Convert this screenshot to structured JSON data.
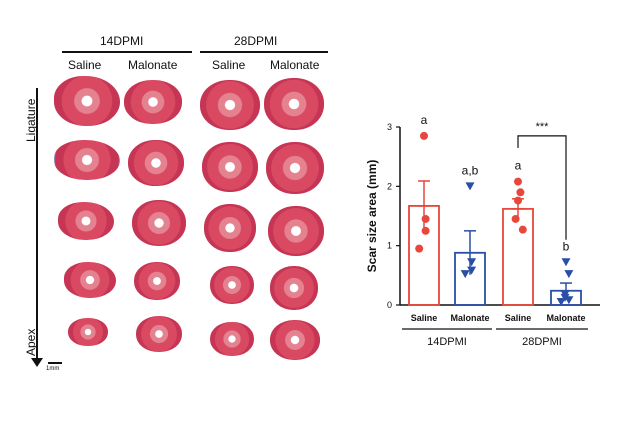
{
  "left_panel": {
    "groups": [
      {
        "label": "14DPMI",
        "columns": [
          "Saline",
          "Malonate"
        ]
      },
      {
        "label": "28DPMI",
        "columns": [
          "Saline",
          "Malonate"
        ]
      }
    ],
    "top_axis_label": "Ligature",
    "bottom_axis_label": "Apex",
    "scale_label": "1mm",
    "colors": {
      "tissue": "#d94a62",
      "fibrosis": "#9b8ec4"
    }
  },
  "chart_data": {
    "type": "bar",
    "ylabel": "Scar size area (mm)",
    "ylim": [
      0,
      3
    ],
    "yticks": [
      0,
      1,
      2,
      3
    ],
    "categories": [
      "Saline",
      "Malonate",
      "Saline",
      "Malonate"
    ],
    "group_labels": [
      {
        "label": "14DPMI",
        "categories": [
          0,
          1
        ]
      },
      {
        "label": "28DPMI",
        "categories": [
          2,
          3
        ]
      }
    ],
    "bars": [
      {
        "category": "Saline",
        "group": "14DPMI",
        "mean": 1.67,
        "sem": 0.42,
        "color": "#e8473b",
        "marker": "circle",
        "points": [
          2.85,
          1.45,
          1.25,
          0.95
        ],
        "letter": "a"
      },
      {
        "category": "Malonate",
        "group": "14DPMI",
        "mean": 0.88,
        "sem": 0.37,
        "color": "#2a4fa6",
        "marker": "triangle-down",
        "points": [
          2.0,
          0.72,
          0.58,
          0.52
        ],
        "letter": "a,b"
      },
      {
        "category": "Saline",
        "group": "28DPMI",
        "mean": 1.62,
        "sem": 0.17,
        "color": "#e8473b",
        "marker": "circle",
        "points": [
          2.08,
          1.9,
          1.76,
          1.45,
          1.27
        ],
        "letter": "a"
      },
      {
        "category": "Malonate",
        "group": "28DPMI",
        "mean": 0.24,
        "sem": 0.13,
        "color": "#2a4fa6",
        "marker": "triangle-down",
        "points": [
          0.72,
          0.52,
          0.18,
          0.12,
          0.08,
          0.05
        ],
        "letter": "b"
      }
    ],
    "significance": {
      "between": [
        2,
        3
      ],
      "label": "***"
    }
  }
}
